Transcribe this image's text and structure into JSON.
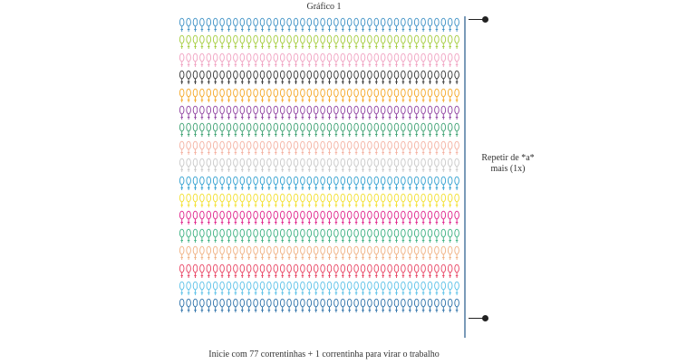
{
  "title": "Gráfico 1",
  "repeat_note": {
    "line1": "Repetir de *a*",
    "line2": "mais (1x)"
  },
  "footer": "Inicie com 77 correntinhas + 1 correntinha para virar o trabalho",
  "rows": [
    {
      "color": "#3a8fc4"
    },
    {
      "color": "#a3cc3a"
    },
    {
      "color": "#f0a0c0"
    },
    {
      "color": "#333333"
    },
    {
      "color": "#f5a623"
    },
    {
      "color": "#8e3fa0"
    },
    {
      "color": "#3aa070"
    },
    {
      "color": "#f4b0a0"
    },
    {
      "color": "#c8c8c8"
    },
    {
      "color": "#2e9fd0"
    },
    {
      "color": "#f2df2a"
    },
    {
      "color": "#e0208a"
    },
    {
      "color": "#3ab080"
    },
    {
      "color": "#f0b080"
    },
    {
      "color": "#e84060"
    },
    {
      "color": "#58c0e8"
    },
    {
      "color": "#2a6fa8"
    }
  ]
}
